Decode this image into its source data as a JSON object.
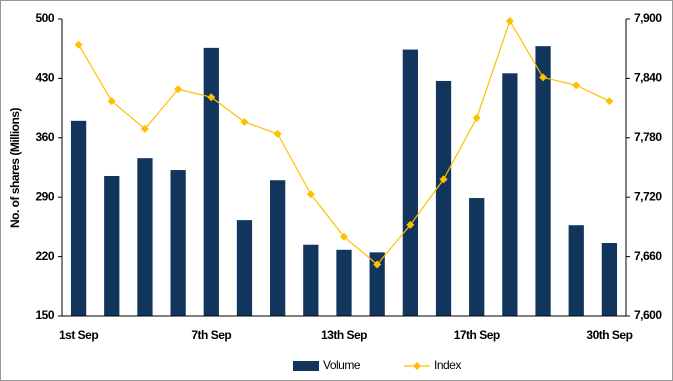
{
  "chart_data": {
    "type": "bar-line",
    "y_label": "No. of shares (Millions)",
    "categories": [
      "1st Sep",
      null,
      null,
      null,
      "7th Sep",
      null,
      null,
      null,
      "13th Sep",
      null,
      null,
      null,
      "17th Sep",
      null,
      null,
      null,
      "30th Sep"
    ],
    "series": [
      {
        "name": "Volume",
        "type": "bar",
        "color": "#12355e",
        "values": [
          380,
          315,
          336,
          322,
          466,
          263,
          310,
          234,
          228,
          225,
          464,
          427,
          289,
          436,
          468,
          257,
          236
        ]
      },
      {
        "name": "Index",
        "type": "line",
        "axis": "y2",
        "color": "#ffbf00",
        "values": [
          7874,
          7817,
          7789,
          7829,
          7821,
          7796,
          7784,
          7723,
          7680,
          7652,
          7692,
          7738,
          7800,
          7898,
          7841,
          7833,
          7817
        ]
      }
    ],
    "ylim": [
      150,
      500
    ],
    "yticks": [
      150,
      220,
      290,
      360,
      430,
      500
    ],
    "y2lim": [
      7600,
      7900
    ],
    "y2ticks": [
      {
        "value": 7600,
        "label": "7,600"
      },
      {
        "value": 7660,
        "label": "7,660"
      },
      {
        "value": 7720,
        "label": "7,720"
      },
      {
        "value": 7780,
        "label": "7,780"
      },
      {
        "value": 7840,
        "label": "7,840"
      },
      {
        "value": 7900,
        "label": "7,900"
      }
    ],
    "grid": false
  }
}
